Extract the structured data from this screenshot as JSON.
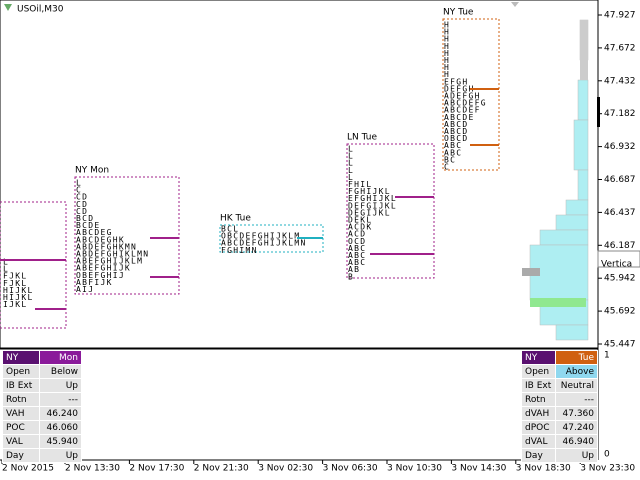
{
  "header": {
    "symbol": "USOil,M30"
  },
  "price_axis": [
    "47.927",
    "47.672",
    "47.432",
    "47.182",
    "46.932",
    "46.687",
    "46.437",
    "46.187",
    "45.942",
    "45.692",
    "45.447"
  ],
  "panel_axis": [
    "1",
    "0"
  ],
  "time_axis": [
    "2 Nov 2015",
    "2 Nov 13:30",
    "2 Nov 17:30",
    "2 Nov 21:30",
    "3 Nov 02:30",
    "3 Nov 06:30",
    "3 Nov 10:30",
    "3 Nov 14:30",
    "3 Nov 18:30",
    "3 Nov 23:30"
  ],
  "tooltip": "Vertica",
  "profiles": [
    {
      "label": null,
      "rows": [
        "L",
        "L",
        "FJKL",
        "FJKL",
        "HIJKL",
        "HIJKL",
        "IJKL"
      ]
    },
    {
      "label": "NY Mon",
      "rows": [
        "L",
        "C",
        "CD",
        "CD",
        "CD",
        "BCD",
        "BCDE",
        "ABCDEG",
        "ABCDEGHK",
        "ABDEFGHKMN",
        "ABDEFGHIKLMN",
        "ABEFGHIJKLM",
        "ABEFGHIJK",
        "OBEFGHIJ",
        "ABFIJK",
        "AIJ"
      ]
    },
    {
      "label": "HK Tue",
      "rows": [
        "BCL",
        "OBCDEFGHIJKLM",
        "ABCDEFGHIJKLMN",
        "FGHIMN"
      ]
    },
    {
      "label": "LN Tue",
      "rows": [
        "L",
        "L",
        "L",
        "L",
        "L",
        "FHIL",
        "FGHIJKL",
        "EFGHIJKL",
        "DEFGIJKL",
        "DEGIJKL",
        "DEKL",
        "ACDK",
        "ACD",
        "OCD",
        "ABC",
        "ABC",
        "ABC",
        "AB",
        "B"
      ]
    },
    {
      "label": "NY Tue",
      "rows": [
        "H",
        "H",
        "H",
        "H",
        "H",
        "H",
        "H",
        "H",
        "EFGH",
        "DEFGH",
        "ADEFGH",
        "ABCDEFG",
        "ABCDEF",
        "ABCDE",
        "ABCD",
        "ABCD",
        "OBCD",
        "ABC",
        "ABC",
        "BC",
        "C"
      ]
    }
  ],
  "left_table": {
    "header": [
      "NY",
      "Mon"
    ],
    "rows": [
      [
        "Open",
        "Below"
      ],
      [
        "IB Ext",
        "Up"
      ],
      [
        "Rotn",
        "---"
      ],
      [
        "VAH",
        "46.240"
      ],
      [
        "POC",
        "46.060"
      ],
      [
        "VAL",
        "45.940"
      ],
      [
        "Day",
        "Up"
      ]
    ]
  },
  "right_table": {
    "header": [
      "NY",
      "Tue"
    ],
    "rows": [
      [
        "Open",
        "Above"
      ],
      [
        "IB Ext",
        "Neutral"
      ],
      [
        "Rotn",
        "---"
      ],
      [
        "dVAH",
        "47.360"
      ],
      [
        "dPOC",
        "47.240"
      ],
      [
        "dVAL",
        "46.940"
      ],
      [
        "Day",
        "Up"
      ]
    ]
  }
}
